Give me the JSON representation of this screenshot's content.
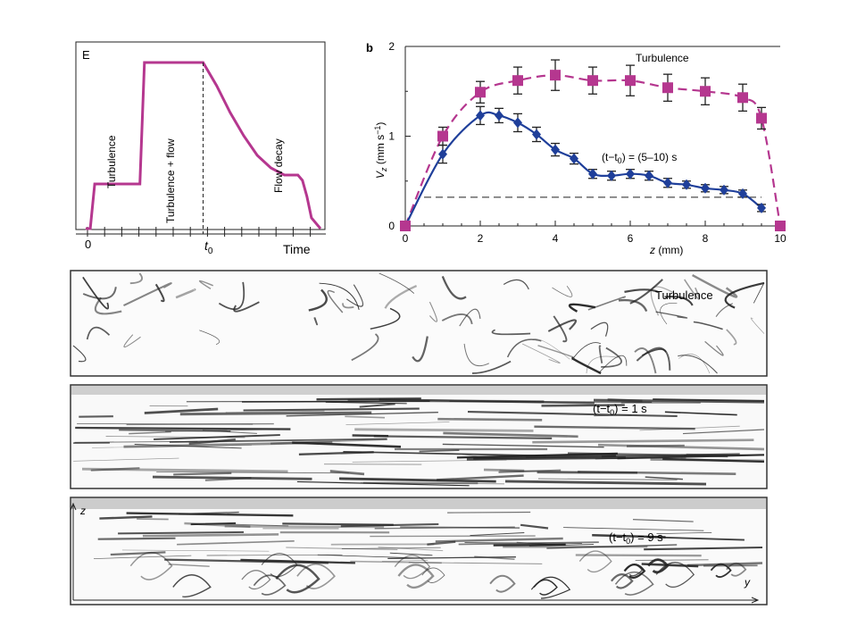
{
  "colors": {
    "magenta": "#b5378f",
    "blue": "#1f3f9a",
    "ink": "#222222"
  },
  "panel_a": {
    "label": "E",
    "tick_zero": "0",
    "t0_main": "t",
    "t0_sub": "0",
    "xlabel": "Time",
    "annotations": [
      "Turbulence",
      "Turbulence + flow",
      "Flow decay"
    ]
  },
  "chart_data": [
    {
      "type": "line",
      "panel": "a",
      "x": [
        0.0,
        0.02,
        0.04,
        0.2,
        0.24,
        0.26,
        0.52,
        0.58,
        0.64,
        0.7,
        0.76,
        0.82,
        0.88,
        0.94,
        0.96,
        0.98,
        1.0,
        1.04
      ],
      "y": [
        0.0,
        0.0,
        0.25,
        0.25,
        0.25,
        0.93,
        0.93,
        0.8,
        0.65,
        0.52,
        0.41,
        0.34,
        0.3,
        0.3,
        0.27,
        0.18,
        0.06,
        0.0
      ],
      "t0": 0.52,
      "xlabel": "Time",
      "ylabel": "E"
    },
    {
      "type": "scatter",
      "panel": "b",
      "label": "b",
      "xlabel": "z (mm)",
      "ylabel": "V_z (mm s^-1)",
      "xlim": [
        0,
        10
      ],
      "ylim": [
        0,
        2
      ],
      "xticks": [
        0,
        2,
        4,
        6,
        8,
        10
      ],
      "yticks": [
        0,
        1,
        2
      ],
      "series": [
        {
          "name": "Turbulence",
          "color": "#b5378f",
          "marker": "square",
          "x": [
            0,
            1,
            2,
            3,
            4,
            5,
            6,
            7,
            8,
            9,
            9.5,
            10
          ],
          "y": [
            0,
            1.0,
            1.49,
            1.62,
            1.68,
            1.62,
            1.62,
            1.54,
            1.5,
            1.43,
            1.2,
            0
          ],
          "err": [
            0,
            0.1,
            0.12,
            0.15,
            0.17,
            0.15,
            0.17,
            0.15,
            0.15,
            0.15,
            0.12,
            0
          ]
        },
        {
          "name": "(t-t0) = (5-10) s",
          "color": "#1f3f9a",
          "marker": "diamond",
          "x": [
            1,
            2,
            2.5,
            3,
            3.5,
            4,
            4.5,
            5,
            5.5,
            6,
            6.5,
            7,
            7.5,
            8,
            8.5,
            9,
            9.5
          ],
          "y": [
            0.8,
            1.23,
            1.23,
            1.15,
            1.02,
            0.85,
            0.75,
            0.58,
            0.56,
            0.58,
            0.56,
            0.48,
            0.46,
            0.42,
            0.4,
            0.36,
            0.2
          ],
          "err": [
            0.1,
            0.1,
            0.08,
            0.1,
            0.08,
            0.07,
            0.06,
            0.05,
            0.05,
            0.05,
            0.05,
            0.05,
            0.04,
            0.04,
            0.04,
            0.04,
            0.04
          ]
        }
      ],
      "baseline": 0.32
    }
  ],
  "panel_b": {
    "label": "b",
    "ylabel_main": "V",
    "ylabel_sub": "z",
    "ylabel_units": " (mm s",
    "ylabel_exp": "−1",
    "ylabel_close": ")",
    "xlabel_main": "z",
    "xlabel_units": " (mm)",
    "legend_turbulence": "Turbulence",
    "legend_flow": "(t−t",
    "legend_flow_sub": "0",
    "legend_flow_rest": ") = (5–10) s",
    "yticks": [
      "0",
      "1",
      "2"
    ],
    "xticks": [
      "0",
      "2",
      "4",
      "6",
      "8",
      "10"
    ]
  },
  "images": {
    "top": {
      "label": "Turbulence"
    },
    "mid": {
      "label_pre": "(t−t",
      "label_sub": "0",
      "label_post": ") = 1 s"
    },
    "bot": {
      "label_pre": "(t−t",
      "label_sub": "0",
      "label_post": ") = 9 s",
      "axis_z": "z",
      "axis_y": "y"
    }
  }
}
